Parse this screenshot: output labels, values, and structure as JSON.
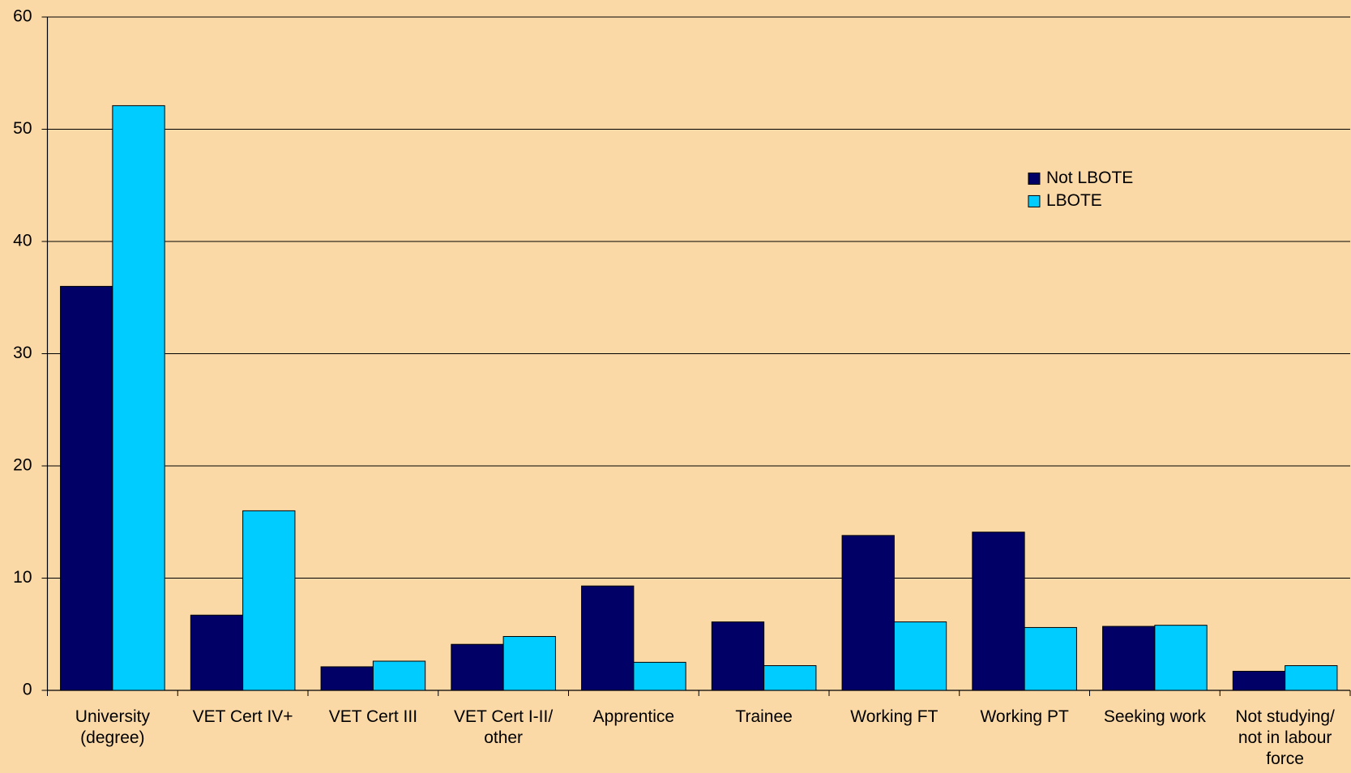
{
  "chart_data": {
    "type": "bar",
    "categories": [
      "University\n(degree)",
      "VET Cert IV+",
      "VET Cert III",
      "VET Cert I-II/\nother",
      "Apprentice",
      "Trainee",
      "Working FT",
      "Working PT",
      "Seeking work",
      "Not studying/\nnot in labour\nforce"
    ],
    "series": [
      {
        "name": "Not LBOTE",
        "color": "#000066",
        "values": [
          36,
          6.7,
          2.1,
          4.1,
          9.3,
          6.1,
          13.8,
          14.1,
          5.7,
          1.7
        ]
      },
      {
        "name": "LBOTE",
        "color": "#00ccff",
        "values": [
          52.1,
          16,
          2.6,
          4.8,
          2.5,
          2.2,
          6.1,
          5.6,
          5.8,
          2.2
        ]
      }
    ],
    "ylim": [
      0,
      60
    ],
    "yticks": [
      0,
      10,
      20,
      30,
      40,
      50,
      60
    ],
    "grid": true,
    "legend": "upper right"
  }
}
